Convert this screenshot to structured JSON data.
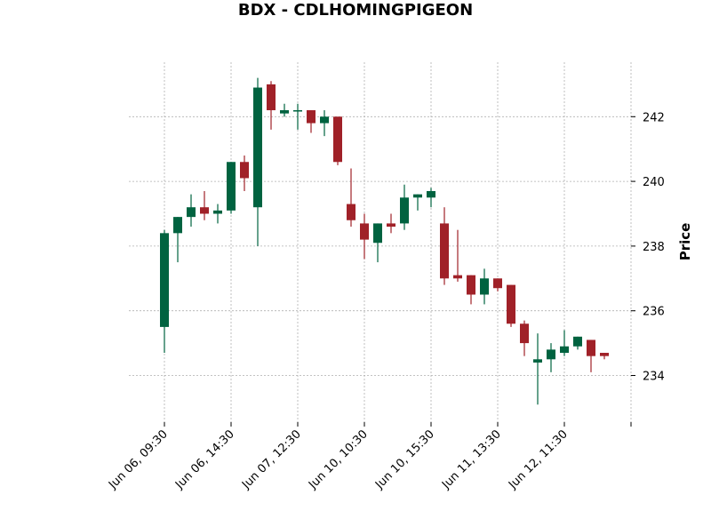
{
  "chart_data": {
    "type": "candlestick",
    "title": "BDX - CDLHOMINGPIGEON",
    "xlabel": "",
    "ylabel": "Price",
    "ylim": [
      232.6,
      243.6
    ],
    "y_ticks": [
      234,
      236,
      238,
      240,
      242
    ],
    "x_tick_labels": [
      "Jun 06, 09:30",
      "Jun 06, 14:30",
      "Jun 07, 12:30",
      "Jun 10, 10:30",
      "Jun 10, 15:30",
      "Jun 11, 13:30",
      "Jun 12, 11:30"
    ],
    "x_tick_indices": [
      0,
      5,
      10,
      15,
      20,
      25,
      30
    ],
    "grid": true,
    "up_color": "#006340",
    "down_color": "#a02128",
    "candles": [
      {
        "o": 235.5,
        "h": 238.5,
        "l": 234.7,
        "c": 238.4
      },
      {
        "o": 238.4,
        "h": 238.9,
        "l": 237.5,
        "c": 238.9
      },
      {
        "o": 238.9,
        "h": 239.6,
        "l": 238.6,
        "c": 239.2
      },
      {
        "o": 239.2,
        "h": 239.7,
        "l": 238.8,
        "c": 239.0
      },
      {
        "o": 239.0,
        "h": 239.3,
        "l": 238.7,
        "c": 239.1
      },
      {
        "o": 239.1,
        "h": 240.6,
        "l": 239.0,
        "c": 240.6
      },
      {
        "o": 240.6,
        "h": 240.8,
        "l": 239.7,
        "c": 240.1
      },
      {
        "o": 239.2,
        "h": 243.2,
        "l": 238.0,
        "c": 242.9
      },
      {
        "o": 243.0,
        "h": 243.1,
        "l": 241.6,
        "c": 242.2
      },
      {
        "o": 242.1,
        "h": 242.4,
        "l": 242.0,
        "c": 242.2
      },
      {
        "o": 242.2,
        "h": 242.4,
        "l": 241.6,
        "c": 242.2
      },
      {
        "o": 242.2,
        "h": 242.2,
        "l": 241.5,
        "c": 241.8
      },
      {
        "o": 241.8,
        "h": 242.2,
        "l": 241.4,
        "c": 242.0
      },
      {
        "o": 242.0,
        "h": 242.0,
        "l": 240.5,
        "c": 240.6
      },
      {
        "o": 239.3,
        "h": 240.4,
        "l": 238.6,
        "c": 238.8
      },
      {
        "o": 238.7,
        "h": 239.0,
        "l": 237.6,
        "c": 238.2
      },
      {
        "o": 238.1,
        "h": 238.7,
        "l": 237.5,
        "c": 238.7
      },
      {
        "o": 238.7,
        "h": 239.0,
        "l": 238.4,
        "c": 238.6
      },
      {
        "o": 238.7,
        "h": 239.9,
        "l": 238.5,
        "c": 239.5
      },
      {
        "o": 239.5,
        "h": 239.6,
        "l": 239.1,
        "c": 239.6
      },
      {
        "o": 239.5,
        "h": 239.8,
        "l": 239.2,
        "c": 239.7
      },
      {
        "o": 238.7,
        "h": 239.2,
        "l": 236.8,
        "c": 237.0
      },
      {
        "o": 237.1,
        "h": 238.5,
        "l": 236.9,
        "c": 237.0
      },
      {
        "o": 237.1,
        "h": 237.1,
        "l": 236.2,
        "c": 236.5
      },
      {
        "o": 236.5,
        "h": 237.3,
        "l": 236.2,
        "c": 237.0
      },
      {
        "o": 237.0,
        "h": 237.0,
        "l": 236.6,
        "c": 236.7
      },
      {
        "o": 236.8,
        "h": 236.8,
        "l": 235.5,
        "c": 235.6
      },
      {
        "o": 235.6,
        "h": 235.7,
        "l": 234.6,
        "c": 235.0
      },
      {
        "o": 234.4,
        "h": 235.3,
        "l": 233.1,
        "c": 234.5
      },
      {
        "o": 234.5,
        "h": 235.0,
        "l": 234.1,
        "c": 234.8
      },
      {
        "o": 234.7,
        "h": 235.4,
        "l": 234.6,
        "c": 234.9
      },
      {
        "o": 234.9,
        "h": 235.2,
        "l": 234.8,
        "c": 235.2
      },
      {
        "o": 235.1,
        "h": 235.1,
        "l": 234.1,
        "c": 234.6
      },
      {
        "o": 234.7,
        "h": 234.7,
        "l": 234.5,
        "c": 234.6
      }
    ]
  }
}
